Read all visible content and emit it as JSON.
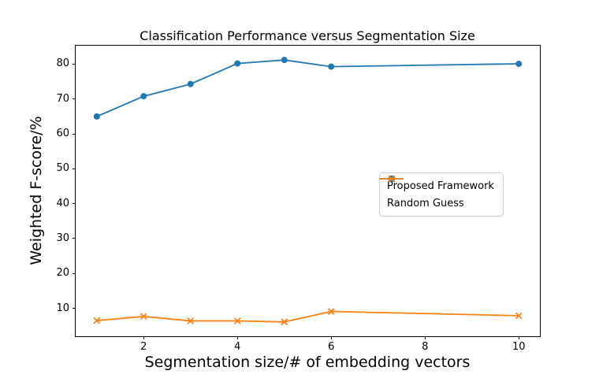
{
  "figure": {
    "background": "#ffffff",
    "axis_color": "#000000"
  },
  "chart_data": {
    "type": "line",
    "title": "Classification Performance versus Segmentation Size",
    "xlabel": "Segmentation size/# of embedding vectors",
    "ylabel": "Weighted F-score/%",
    "x": [
      1,
      2,
      3,
      4,
      5,
      6,
      10
    ],
    "series": [
      {
        "name": "Proposed Framework",
        "color": "#1f77b4",
        "marker": "circle",
        "values": [
          65.0,
          70.8,
          74.3,
          80.2,
          81.2,
          79.3,
          80.1
        ]
      },
      {
        "name": "Random Guess",
        "color": "#ff7f0e",
        "marker": "x",
        "values": [
          6.5,
          7.7,
          6.4,
          6.4,
          6.1,
          9.1,
          7.9
        ]
      }
    ],
    "xlim": [
      0.55,
      10.45
    ],
    "ylim": [
      2.0,
      85.3
    ],
    "xticks": [
      2,
      4,
      6,
      8,
      10
    ],
    "yticks": [
      10,
      20,
      30,
      40,
      50,
      60,
      70,
      80
    ],
    "grid": false,
    "legend_position": "center-right"
  }
}
